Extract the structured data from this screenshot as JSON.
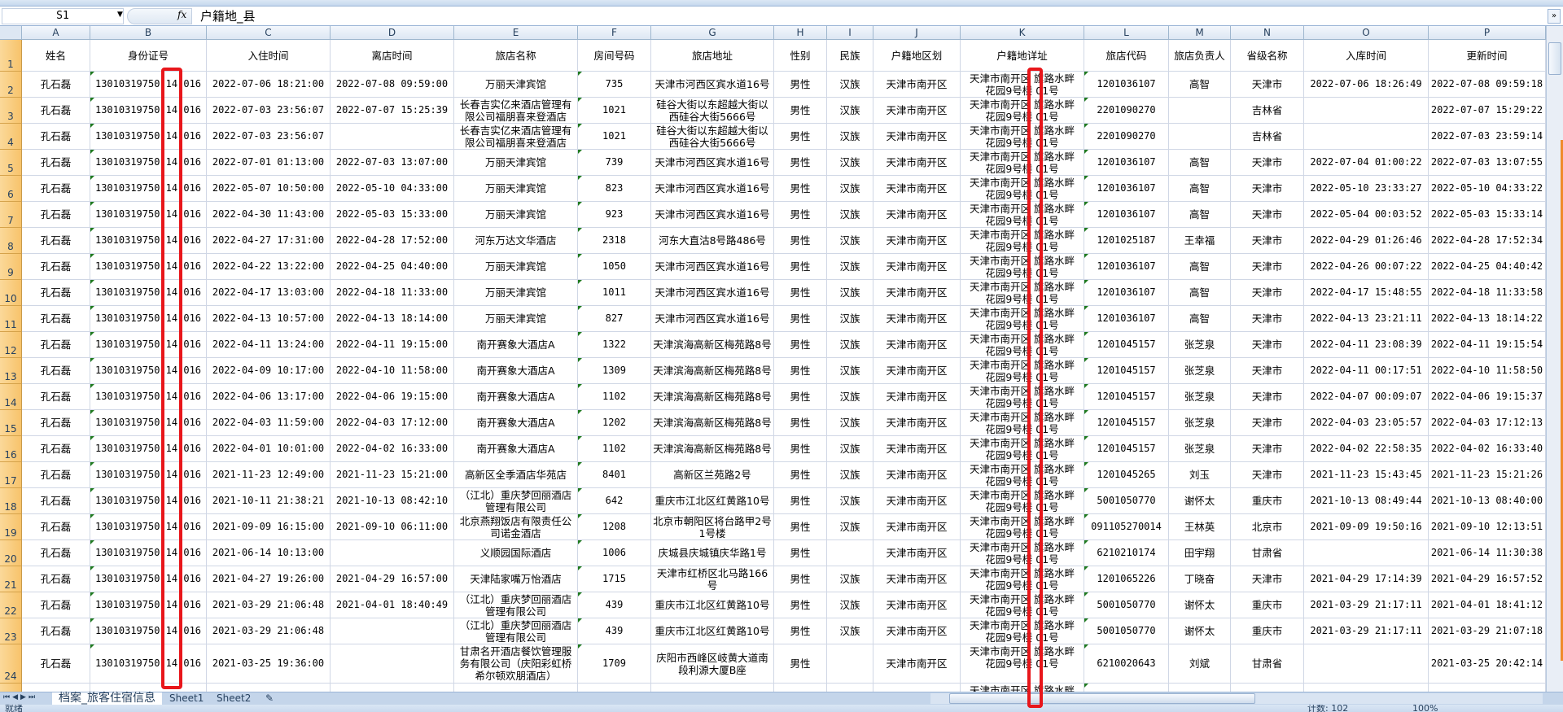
{
  "formula_bar": {
    "name_box": "S1",
    "fx_label": "fx",
    "formula": "户籍地_县"
  },
  "columns": [
    "A",
    "B",
    "C",
    "D",
    "E",
    "F",
    "G",
    "H",
    "I",
    "J",
    "K",
    "L",
    "M",
    "N",
    "O",
    "P"
  ],
  "headers": [
    "姓名",
    "身份证号",
    "入住时间",
    "离店时间",
    "旅店名称",
    "房间号码",
    "旅店地址",
    "性别",
    "民族",
    "户籍地区划",
    "户籍地详址",
    "旅店代码",
    "旅店负责人",
    "省级名称",
    "入库时间",
    "更新时间"
  ],
  "rows": [
    [
      "孔石磊",
      "13010319750 14 016",
      "2022-07-06 18:21:00",
      "2022-07-08 09:59:00",
      "万丽天津宾馆",
      "735",
      "天津市河西区宾水道16号",
      "男性",
      "汉族",
      "天津市南开区",
      "天津市南开区 旗路水畔\n花园9号楼 01号",
      "1201036107",
      "高智",
      "天津市",
      "2022-07-06 18:26:49",
      "2022-07-08 09:59:18"
    ],
    [
      "孔石磊",
      "13010319750 14 016",
      "2022-07-03 23:56:07",
      "2022-07-07 15:25:39",
      "长春吉实亿来酒店管理有限公司福朋喜来登酒店",
      "1021",
      "硅谷大街以东超越大街以西硅谷大街5666号",
      "男性",
      "汉族",
      "天津市南开区",
      "天津市南开区 旗路水畔\n花园9号楼 01号",
      "2201090270",
      "",
      "吉林省",
      "",
      "2022-07-07 15:29:22"
    ],
    [
      "孔石磊",
      "13010319750 14 016",
      "2022-07-03 23:56:07",
      "",
      "长春吉实亿来酒店管理有限公司福朋喜来登酒店",
      "1021",
      "硅谷大街以东超越大街以西硅谷大街5666号",
      "男性",
      "汉族",
      "天津市南开区",
      "天津市南开区 旗路水畔\n花园9号楼 01号",
      "2201090270",
      "",
      "吉林省",
      "",
      "2022-07-03 23:59:14"
    ],
    [
      "孔石磊",
      "13010319750 14 016",
      "2022-07-01 01:13:00",
      "2022-07-03 13:07:00",
      "万丽天津宾馆",
      "739",
      "天津市河西区宾水道16号",
      "男性",
      "汉族",
      "天津市南开区",
      "天津市南开区 旗路水畔\n花园9号楼 01号",
      "1201036107",
      "高智",
      "天津市",
      "2022-07-04 01:00:22",
      "2022-07-03 13:07:55"
    ],
    [
      "孔石磊",
      "13010319750 14 016",
      "2022-05-07 10:50:00",
      "2022-05-10 04:33:00",
      "万丽天津宾馆",
      "823",
      "天津市河西区宾水道16号",
      "男性",
      "汉族",
      "天津市南开区",
      "天津市南开区 旗路水畔\n花园9号楼 01号",
      "1201036107",
      "高智",
      "天津市",
      "2022-05-10 23:33:27",
      "2022-05-10 04:33:22"
    ],
    [
      "孔石磊",
      "13010319750 14 016",
      "2022-04-30 11:43:00",
      "2022-05-03 15:33:00",
      "万丽天津宾馆",
      "923",
      "天津市河西区宾水道16号",
      "男性",
      "汉族",
      "天津市南开区",
      "天津市南开区 旗路水畔\n花园9号楼 01号",
      "1201036107",
      "高智",
      "天津市",
      "2022-05-04 00:03:52",
      "2022-05-03 15:33:14"
    ],
    [
      "孔石磊",
      "13010319750 14 016",
      "2022-04-27 17:31:00",
      "2022-04-28 17:52:00",
      "河东万达文华酒店",
      "2318",
      "河东大直沽8号路486号",
      "男性",
      "汉族",
      "天津市南开区",
      "天津市南开区 旗路水畔\n花园9号楼 01号",
      "1201025187",
      "王幸福",
      "天津市",
      "2022-04-29 01:26:46",
      "2022-04-28 17:52:34"
    ],
    [
      "孔石磊",
      "13010319750 14 016",
      "2022-04-22 13:22:00",
      "2022-04-25 04:40:00",
      "万丽天津宾馆",
      "1050",
      "天津市河西区宾水道16号",
      "男性",
      "汉族",
      "天津市南开区",
      "天津市南开区 旗路水畔\n花园9号楼 01号",
      "1201036107",
      "高智",
      "天津市",
      "2022-04-26 00:07:22",
      "2022-04-25 04:40:42"
    ],
    [
      "孔石磊",
      "13010319750 14 016",
      "2022-04-17 13:03:00",
      "2022-04-18 11:33:00",
      "万丽天津宾馆",
      "1011",
      "天津市河西区宾水道16号",
      "男性",
      "汉族",
      "天津市南开区",
      "天津市南开区 旗路水畔\n花园9号楼 01号",
      "1201036107",
      "高智",
      "天津市",
      "2022-04-17 15:48:55",
      "2022-04-18 11:33:58"
    ],
    [
      "孔石磊",
      "13010319750 14 016",
      "2022-04-13 10:57:00",
      "2022-04-13 18:14:00",
      "万丽天津宾馆",
      "827",
      "天津市河西区宾水道16号",
      "男性",
      "汉族",
      "天津市南开区",
      "天津市南开区 旗路水畔\n花园9号楼 01号",
      "1201036107",
      "高智",
      "天津市",
      "2022-04-13 23:21:11",
      "2022-04-13 18:14:22"
    ],
    [
      "孔石磊",
      "13010319750 14 016",
      "2022-04-11 13:24:00",
      "2022-04-11 19:15:00",
      "南开赛象大酒店A",
      "1322",
      "天津滨海高新区梅苑路8号",
      "男性",
      "汉族",
      "天津市南开区",
      "天津市南开区 旗路水畔\n花园9号楼 01号",
      "1201045157",
      "张芝泉",
      "天津市",
      "2022-04-11 23:08:39",
      "2022-04-11 19:15:54"
    ],
    [
      "孔石磊",
      "13010319750 14 016",
      "2022-04-09 10:17:00",
      "2022-04-10 11:58:00",
      "南开赛象大酒店A",
      "1309",
      "天津滨海高新区梅苑路8号",
      "男性",
      "汉族",
      "天津市南开区",
      "天津市南开区 旗路水畔\n花园9号楼 01号",
      "1201045157",
      "张芝泉",
      "天津市",
      "2022-04-11 00:17:51",
      "2022-04-10 11:58:50"
    ],
    [
      "孔石磊",
      "13010319750 14 016",
      "2022-04-06 13:17:00",
      "2022-04-06 19:15:00",
      "南开赛象大酒店A",
      "1102",
      "天津滨海高新区梅苑路8号",
      "男性",
      "汉族",
      "天津市南开区",
      "天津市南开区 旗路水畔\n花园9号楼 01号",
      "1201045157",
      "张芝泉",
      "天津市",
      "2022-04-07 00:09:07",
      "2022-04-06 19:15:37"
    ],
    [
      "孔石磊",
      "13010319750 14 016",
      "2022-04-03 11:59:00",
      "2022-04-03 17:12:00",
      "南开赛象大酒店A",
      "1202",
      "天津滨海高新区梅苑路8号",
      "男性",
      "汉族",
      "天津市南开区",
      "天津市南开区 旗路水畔\n花园9号楼 01号",
      "1201045157",
      "张芝泉",
      "天津市",
      "2022-04-03 23:05:57",
      "2022-04-03 17:12:13"
    ],
    [
      "孔石磊",
      "13010319750 14 016",
      "2022-04-01 10:01:00",
      "2022-04-02 16:33:00",
      "南开赛象大酒店A",
      "1102",
      "天津滨海高新区梅苑路8号",
      "男性",
      "汉族",
      "天津市南开区",
      "天津市南开区 旗路水畔\n花园9号楼 01号",
      "1201045157",
      "张芝泉",
      "天津市",
      "2022-04-02 22:58:35",
      "2022-04-02 16:33:40"
    ],
    [
      "孔石磊",
      "13010319750 14 016",
      "2021-11-23 12:49:00",
      "2021-11-23 15:21:00",
      "高新区全季酒店华苑店",
      "8401",
      "高新区兰苑路2号",
      "男性",
      "汉族",
      "天津市南开区",
      "天津市南开区 旗路水畔\n花园9号楼 01号",
      "1201045265",
      "刘玉",
      "天津市",
      "2021-11-23 15:43:45",
      "2021-11-23 15:21:26"
    ],
    [
      "孔石磊",
      "13010319750 14 016",
      "2021-10-11 21:38:21",
      "2021-10-13 08:42:10",
      "（江北）重庆梦回丽酒店管理有限公司",
      "642",
      "重庆市江北区红黄路10号",
      "男性",
      "汉族",
      "天津市南开区",
      "天津市南开区 旗路水畔\n花园9号楼 01号",
      "5001050770",
      "谢怀太",
      "重庆市",
      "2021-10-13 08:49:44",
      "2021-10-13 08:40:00"
    ],
    [
      "孔石磊",
      "13010319750 14 016",
      "2021-09-09 16:15:00",
      "2021-09-10 06:11:00",
      "北京燕翔饭店有限责任公司诺金酒店",
      "1208",
      "北京市朝阳区将台路甲2号1号楼",
      "男性",
      "汉族",
      "天津市南开区",
      "天津市南开区 旗路水畔\n花园9号楼 01号",
      "091105270014",
      "王林英",
      "北京市",
      "2021-09-09 19:50:16",
      "2021-09-10 12:13:51"
    ],
    [
      "孔石磊",
      "13010319750 14 016",
      "2021-06-14 10:13:00",
      "",
      "义顺园国际酒店",
      "1006",
      "庆城县庆城镇庆华路1号",
      "男性",
      "",
      "天津市南开区",
      "天津市南开区 旗路水畔\n花园9号楼 01号",
      "6210210174",
      "田宇翔",
      "甘肃省",
      "",
      "2021-06-14 11:30:38"
    ],
    [
      "孔石磊",
      "13010319750 14 016",
      "2021-04-27 19:26:00",
      "2021-04-29 16:57:00",
      "天津陆家嘴万怡酒店",
      "1715",
      "天津市红桥区北马路166号",
      "男性",
      "汉族",
      "天津市南开区",
      "天津市南开区 旗路水畔\n花园9号楼 01号",
      "1201065226",
      "丁晓奋",
      "天津市",
      "2021-04-29 17:14:39",
      "2021-04-29 16:57:52"
    ],
    [
      "孔石磊",
      "13010319750 14 016",
      "2021-03-29 21:06:48",
      "2021-04-01 18:40:49",
      "（江北）重庆梦回丽酒店管理有限公司",
      "439",
      "重庆市江北区红黄路10号",
      "男性",
      "汉族",
      "天津市南开区",
      "天津市南开区 旗路水畔\n花园9号楼 01号",
      "5001050770",
      "谢怀太",
      "重庆市",
      "2021-03-29 21:17:11",
      "2021-04-01 18:41:12"
    ],
    [
      "孔石磊",
      "13010319750 14 016",
      "2021-03-29 21:06:48",
      "",
      "（江北）重庆梦回丽酒店管理有限公司",
      "439",
      "重庆市江北区红黄路10号",
      "男性",
      "汉族",
      "天津市南开区",
      "天津市南开区 旗路水畔\n花园9号楼 01号",
      "5001050770",
      "谢怀太",
      "重庆市",
      "2021-03-29 21:17:11",
      "2021-03-29 21:07:18"
    ],
    [
      "孔石磊",
      "13010319750 14 016",
      "2021-03-25 19:36:00",
      "",
      "甘肃名开酒店餐饮管理服务有限公司（庆阳彩虹桥希尔顿欢朋酒店）",
      "1709",
      "庆阳市西峰区岐黄大道南段利源大厦B座",
      "男性",
      "",
      "天津市南开区",
      "天津市南开区 旗路水畔\n花园9号楼 01号",
      "6210020643",
      "刘斌",
      "甘肃省",
      "",
      "2021-03-25 20:42:14"
    ],
    [
      "",
      "",
      "",
      "",
      "",
      "",
      "",
      "",
      "",
      "",
      "天津市南开区 旗路水畔",
      "",
      "",
      "",
      "",
      ""
    ]
  ],
  "sheet_tabs": [
    "档案_旅客住宿信息",
    "Sheet1",
    "Sheet2"
  ],
  "active_tab": "档案_旅客住宿信息",
  "status": {
    "ready": "就绪",
    "count": "计数: 102",
    "zoom": "100%"
  },
  "colors": {
    "highlight_box": "#e8161b",
    "row_header": "#f7c36b",
    "text_marker": "#1f7a1f"
  }
}
